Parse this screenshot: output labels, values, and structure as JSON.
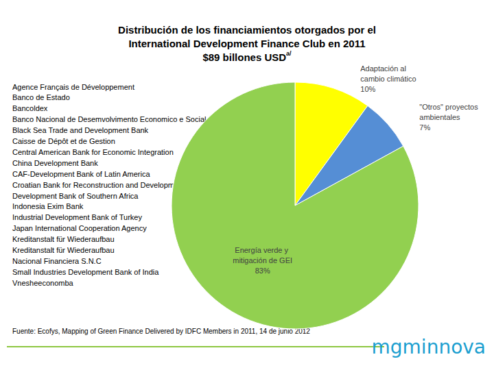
{
  "chart_data": {
    "type": "pie",
    "title": [
      "Distribución de los financiamientos otorgados por el",
      "International Development Finance Club en 2011",
      "$89 billones USD"
    ],
    "title_note": "a/",
    "categories": [
      "Adaptación al cambio climático",
      "\"Otros\" proyectos ambientales",
      "Energía verde y mitigación de GEI"
    ],
    "values": [
      10,
      7,
      83
    ],
    "value_labels": [
      "10%",
      "7%",
      "83%"
    ],
    "colors": [
      "#ffff00",
      "#558ed5",
      "#92d050"
    ],
    "data_labels": true,
    "annotations": {
      "list": [
        "Agence Français de Développement",
        "Banco de Estado",
        "Bancoldex",
        "Banco Nacional de Desemvolvimento Economico e Social",
        "Black Sea Trade and Development Bank",
        "Caisse de Dépôt et de Gestion",
        "Central American Bank for Economic Integration",
        "China Development Bank",
        "CAF-Development Bank of Latin America",
        "Croatian Bank for Reconstruction and Development",
        "Development Bank of Southern Africa",
        "Indonesia Exim Bank",
        "Industrial Development Bank of Turkey",
        "Japan International Cooperation Agency",
        "Kreditanstalt für Wiederaufbau",
        "Kreditanstalt für Wiederaufbau",
        "Nacional Financiera S.N.C",
        "Small Industries Development Bank of India",
        "Vnesheeconomba"
      ],
      "source": "Fuente: Ecofys, Mapping of Green Finance Delivered by IDFC Members in 2011, 14 de junio 2012",
      "logo": "mgminnova"
    }
  }
}
